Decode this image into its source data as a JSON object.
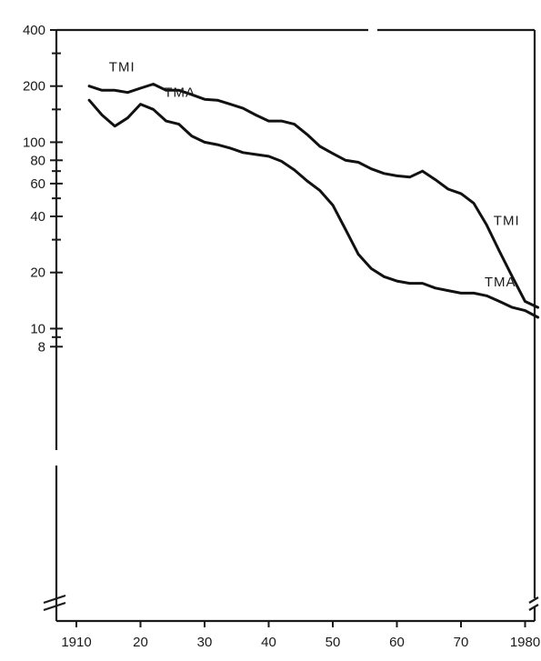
{
  "chart_data": {
    "type": "line",
    "title": "",
    "xlabel": "",
    "ylabel": "",
    "y_scale": "log",
    "x_range": [
      1910,
      1982
    ],
    "y_range": [
      6.5,
      400
    ],
    "grid": false,
    "legend": "none (series labelled directly on lines)",
    "x_ticks": [
      {
        "value": 1910,
        "label": "1910"
      },
      {
        "value": 1920,
        "label": "20"
      },
      {
        "value": 1930,
        "label": "30"
      },
      {
        "value": 1940,
        "label": "40"
      },
      {
        "value": 1950,
        "label": "50"
      },
      {
        "value": 1960,
        "label": "60"
      },
      {
        "value": 1970,
        "label": "70"
      },
      {
        "value": 1980,
        "label": "1980"
      }
    ],
    "y_ticks": [
      {
        "value": 400,
        "label": "400"
      },
      {
        "value": 200,
        "label": "200"
      },
      {
        "value": 100,
        "label": "100"
      },
      {
        "value": 80,
        "label": "80"
      },
      {
        "value": 60,
        "label": "60"
      },
      {
        "value": 40,
        "label": "40"
      },
      {
        "value": 20,
        "label": "20"
      },
      {
        "value": 10,
        "label": "10"
      },
      {
        "value": 8,
        "label": "8"
      }
    ],
    "series": [
      {
        "name": "TMI",
        "label_text": "TMI",
        "x": [
          1912,
          1914,
          1916,
          1918,
          1920,
          1922,
          1924,
          1926,
          1928,
          1930,
          1932,
          1934,
          1936,
          1938,
          1940,
          1942,
          1944,
          1946,
          1948,
          1950,
          1952,
          1954,
          1956,
          1958,
          1960,
          1962,
          1964,
          1966,
          1968,
          1970,
          1972,
          1974,
          1976,
          1978,
          1980,
          1982
        ],
        "values": [
          200,
          190,
          190,
          185,
          195,
          205,
          190,
          190,
          180,
          170,
          168,
          160,
          152,
          140,
          130,
          130,
          125,
          110,
          95,
          87,
          80,
          78,
          72,
          68,
          66,
          65,
          70,
          63,
          56,
          53,
          47,
          36,
          26,
          19,
          14,
          13
        ]
      },
      {
        "name": "TMA",
        "label_text": "TMA",
        "x": [
          1912,
          1914,
          1916,
          1918,
          1920,
          1922,
          1924,
          1926,
          1928,
          1930,
          1932,
          1934,
          1936,
          1938,
          1940,
          1942,
          1944,
          1946,
          1948,
          1950,
          1952,
          1954,
          1956,
          1958,
          1960,
          1962,
          1964,
          1966,
          1968,
          1970,
          1972,
          1974,
          1976,
          1978,
          1980,
          1982
        ],
        "values": [
          168,
          140,
          122,
          135,
          160,
          150,
          130,
          125,
          108,
          100,
          97,
          93,
          88,
          86,
          84,
          79,
          71,
          62,
          55,
          46,
          34,
          25,
          21,
          19,
          18,
          17.5,
          17.5,
          16.5,
          16,
          15.5,
          15.5,
          15,
          14,
          13,
          12.5,
          11.5
        ]
      }
    ]
  }
}
